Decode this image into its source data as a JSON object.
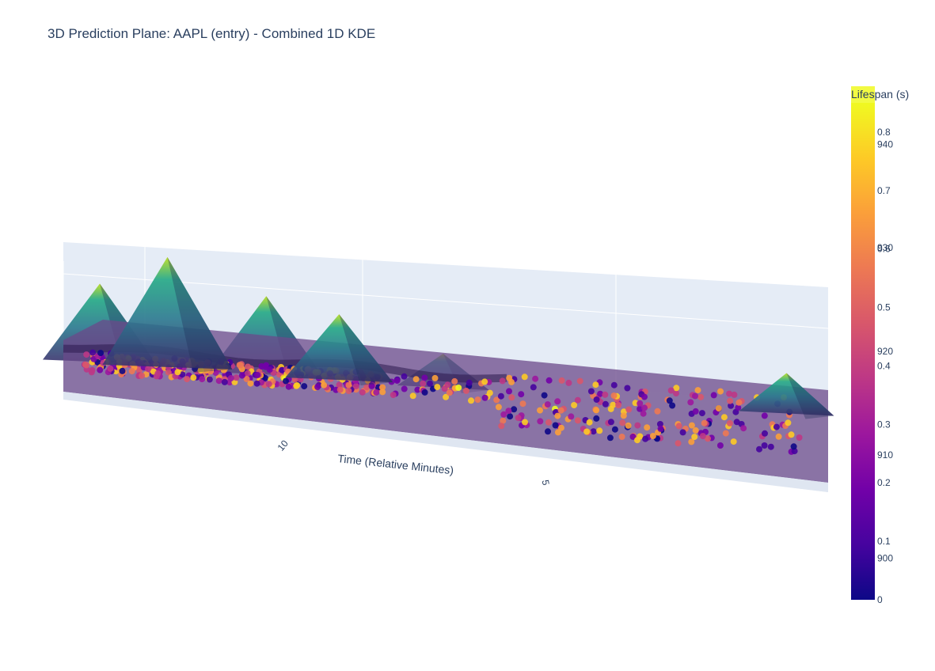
{
  "title": "3D Prediction Plane: AAPL (entry) - Combined 1D KDE",
  "chart_data": {
    "type": "scatter3d",
    "x_axis": {
      "title": "Time (Relative Minutes)",
      "tick_labels": [
        "10",
        "5"
      ],
      "reversed": true
    },
    "background_color": "#e5ecf6",
    "plane_color": "#6b4a8a",
    "colorbars": [
      {
        "title": "Lifespan (s)",
        "colorscale": "Plasma",
        "ticks": [
          "0",
          "0.1",
          "0.2",
          "0.3",
          "0.4",
          "0.5",
          "0.6",
          "0.7",
          "0.8"
        ],
        "range": [
          0,
          0.85
        ]
      },
      {
        "title": "",
        "colorscale": "Plasma",
        "ticks": [
          "900",
          "910",
          "920",
          "930",
          "940"
        ],
        "range": [
          896,
          944
        ]
      }
    ],
    "kde_peaks": [
      {
        "time": 13.5,
        "height": 0.55
      },
      {
        "time": 12.2,
        "height": 0.8
      },
      {
        "time": 10.3,
        "height": 0.55
      },
      {
        "time": 8.9,
        "height": 0.45
      },
      {
        "time": 6.9,
        "height": 0.2
      },
      {
        "time": 0.3,
        "height": 0.25
      }
    ],
    "scatter": {
      "marker": "circle",
      "colorscale": "Plasma",
      "clusters": [
        {
          "time_range": [
            10,
            13.8
          ],
          "count": 230
        },
        {
          "time_range": [
            8,
            10
          ],
          "count": 120
        },
        {
          "time_range": [
            6,
            8
          ],
          "count": 40
        },
        {
          "time_range": [
            0,
            6
          ],
          "count": 200
        }
      ]
    }
  }
}
